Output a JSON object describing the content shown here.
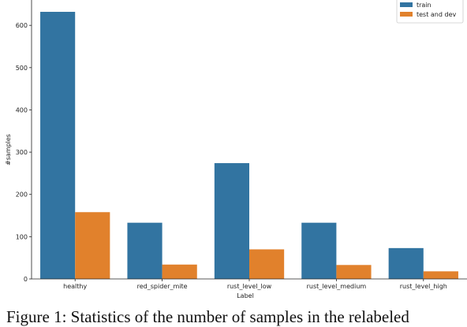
{
  "chart_data": {
    "type": "bar",
    "categories": [
      "healthy",
      "red_spider_mite",
      "rust_level_low",
      "rust_level_medium",
      "rust_level_high"
    ],
    "series": [
      {
        "name": "train",
        "color": "#3274a1",
        "values": [
          632,
          133,
          274,
          133,
          73
        ]
      },
      {
        "name": "test and dev",
        "color": "#e1812c",
        "values": [
          158,
          34,
          70,
          33,
          18
        ]
      }
    ],
    "xlabel": "Label",
    "ylabel": "#samples",
    "ylim": [
      0,
      660
    ],
    "yticks": [
      0,
      100,
      200,
      300,
      400,
      500,
      600
    ],
    "grid": false,
    "legend_position": "top-right"
  },
  "caption": "Figure 1: Statistics of the number of samples in the relabeled"
}
